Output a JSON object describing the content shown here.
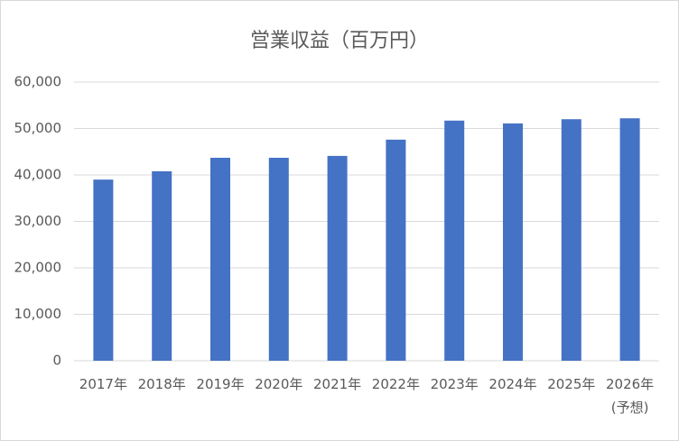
{
  "chart_data": {
    "type": "bar",
    "title": "営業収益（百万円）",
    "categories": [
      "2017年",
      "2018年",
      "2019年",
      "2020年",
      "2021年",
      "2022年",
      "2023年",
      "2024年",
      "2025年",
      "2026年(予想)"
    ],
    "values": [
      39000,
      40800,
      43700,
      43700,
      44100,
      47600,
      51700,
      51100,
      52000,
      52200
    ],
    "color": "#4472c4",
    "ylim": [
      0,
      60000
    ],
    "yticks": [
      0,
      {
        "value": 10000,
        "label": "10,000"
      },
      {
        "value": 20000,
        "label": "20,000"
      },
      {
        "value": 30000,
        "label": "30,000"
      },
      {
        "value": 40000,
        "label": "40,000"
      },
      {
        "value": 50000,
        "label": "50,000"
      },
      {
        "value": 60000,
        "label": "60,000"
      }
    ],
    "grid": true
  }
}
